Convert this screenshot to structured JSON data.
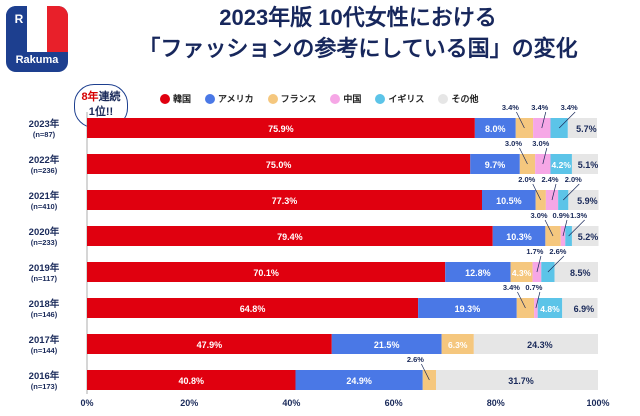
{
  "header": {
    "title_line1": "2023年版 10代女性における",
    "title_line2": "「ファッションの参考にしている国」の変化"
  },
  "logo": {
    "brand": "Rakuma",
    "mark": "R",
    "icon": "rakuma-logo-icon"
  },
  "badge": {
    "line1_red": "8年",
    "line1_rest": "連続",
    "line2": "1位!!"
  },
  "colors": {
    "韓国": "#e0000f",
    "アメリカ": "#4a78e6",
    "フランス": "#f5c77e",
    "中国": "#f6a7e6",
    "イギリス": "#5cc4e8",
    "その他": "#e6e6e6"
  },
  "chart_data": {
    "type": "bar",
    "orientation": "horizontal",
    "stacked": true,
    "categories": [
      {
        "year": "2023年",
        "n": "(n=87)"
      },
      {
        "year": "2022年",
        "n": "(n=236)"
      },
      {
        "year": "2021年",
        "n": "(n=410)"
      },
      {
        "year": "2020年",
        "n": "(n=233)"
      },
      {
        "year": "2019年",
        "n": "(n=117)"
      },
      {
        "year": "2018年",
        "n": "(n=146)"
      },
      {
        "year": "2017年",
        "n": "(n=144)"
      },
      {
        "year": "2016年",
        "n": "(n=173)"
      }
    ],
    "series": [
      {
        "name": "韓国",
        "values": [
          75.9,
          75.0,
          77.3,
          79.4,
          70.1,
          64.8,
          47.9,
          40.8
        ]
      },
      {
        "name": "アメリカ",
        "values": [
          8.0,
          9.7,
          10.5,
          10.3,
          12.8,
          19.3,
          21.5,
          24.9
        ]
      },
      {
        "name": "フランス",
        "values": [
          3.4,
          3.0,
          2.0,
          3.0,
          4.3,
          3.4,
          6.3,
          2.6
        ]
      },
      {
        "name": "中国",
        "values": [
          3.4,
          3.0,
          2.4,
          0.9,
          1.7,
          0.7,
          0,
          0
        ]
      },
      {
        "name": "イギリス",
        "values": [
          3.4,
          4.2,
          2.0,
          1.3,
          2.6,
          4.8,
          0,
          0
        ]
      },
      {
        "name": "その他",
        "values": [
          5.7,
          5.1,
          5.9,
          5.2,
          8.5,
          6.9,
          24.3,
          31.7
        ]
      }
    ],
    "labels": [
      [
        "75.9%",
        "8.0%",
        "3.4%",
        "3.4%",
        "3.4%",
        "5.7%"
      ],
      [
        "75.0%",
        "9.7%",
        "3.0%",
        "3.0%",
        "4.2%",
        "5.1%"
      ],
      [
        "77.3%",
        "10.5%",
        "2.0%",
        "2.4%",
        "2.0%",
        "5.9%"
      ],
      [
        "79.4%",
        "10.3%",
        "3.0%",
        "0.9%",
        "1.3%",
        "5.2%"
      ],
      [
        "70.1%",
        "12.8%",
        "4.3%",
        "1.7%",
        "2.6%",
        "8.5%"
      ],
      [
        "64.8%",
        "19.3%",
        "3.4%",
        "0.7%",
        "4.8%",
        "6.9%"
      ],
      [
        "47.9%",
        "21.5%",
        "6.3%",
        "",
        "",
        "24.3%"
      ],
      [
        "40.8%",
        "24.9%",
        "2.6%",
        "",
        "",
        "31.7%"
      ]
    ],
    "xlim": [
      0,
      100
    ],
    "xticks": [
      "0%",
      "20%",
      "40%",
      "60%",
      "80%",
      "100%"
    ],
    "legend": [
      "韓国",
      "アメリカ",
      "フランス",
      "中国",
      "イギリス",
      "その他"
    ],
    "legend_position": "top"
  }
}
